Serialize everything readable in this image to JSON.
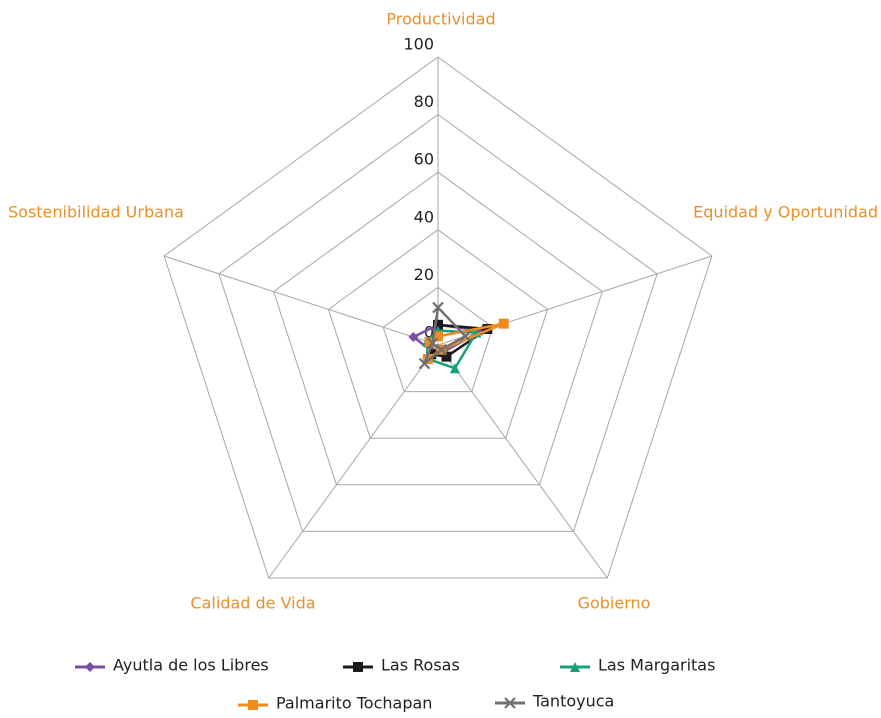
{
  "chart_data": {
    "type": "radar",
    "categories": [
      "Productividad",
      "Equidad y Oportunidad",
      "Gobierno",
      "Calidad de Vida",
      "Sostenibilidad Urbana"
    ],
    "rlim": [
      0,
      100
    ],
    "rticks": [
      0,
      20,
      40,
      60,
      80,
      100
    ],
    "grid": true,
    "series": [
      {
        "name": "Ayutla de los Libres",
        "color": "#7b4fa0",
        "marker": "diamond",
        "values": [
          7,
          16,
          3,
          3,
          9
        ]
      },
      {
        "name": "Las Rosas",
        "color": "#1a1a1a",
        "marker": "square",
        "values": [
          7,
          18,
          5,
          4,
          3
        ]
      },
      {
        "name": "Las Margaritas",
        "color": "#14a07a",
        "marker": "triangle",
        "values": [
          5,
          14,
          10,
          6,
          4
        ]
      },
      {
        "name": "Palmarito Tochapan",
        "color": "#f08c1e",
        "marker": "square",
        "values": [
          3,
          24,
          2,
          6,
          3
        ]
      },
      {
        "name": "Tantoyuca",
        "color": "#707070",
        "marker": "x",
        "values": [
          13,
          10,
          2,
          8,
          2
        ]
      }
    ]
  }
}
